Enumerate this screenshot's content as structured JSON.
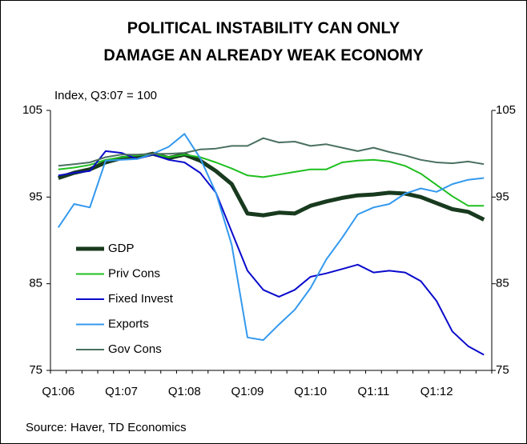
{
  "chart_data": {
    "type": "line",
    "title": [
      "POLITICAL INSTABILITY CAN ONLY",
      "DAMAGE AN ALREADY WEAK ECONOMY"
    ],
    "ylabel": "Index, Q3:07 = 100",
    "source": "Source: Haver, TD Economics",
    "categories": [
      "Q1:06",
      null,
      null,
      null,
      "Q1:07",
      null,
      null,
      null,
      "Q1:08",
      null,
      null,
      null,
      "Q1:09",
      null,
      null,
      null,
      "Q1:10",
      null,
      null,
      null,
      "Q1:11",
      null,
      null,
      null,
      "Q1:12",
      null,
      null,
      null
    ],
    "ylim": [
      75,
      105
    ],
    "yticks": [
      75,
      85,
      95,
      105
    ],
    "y2lim": [
      75,
      105
    ],
    "y2ticks": [
      75,
      85,
      95,
      105
    ],
    "legend": "left",
    "series": [
      {
        "name": "GDP",
        "color": "#183a1e",
        "width": 5,
        "values": [
          97.2,
          97.8,
          98.2,
          99.0,
          99.5,
          99.6,
          100.0,
          99.5,
          99.9,
          99.2,
          98.0,
          96.5,
          93.1,
          92.9,
          93.2,
          93.1,
          94.0,
          94.5,
          94.9,
          95.2,
          95.3,
          95.5,
          95.4,
          95.0,
          94.3,
          93.6,
          93.3,
          92.4
        ]
      },
      {
        "name": "Priv Cons",
        "color": "#1fbf1f",
        "width": 2,
        "values": [
          98.2,
          98.4,
          98.7,
          99.3,
          99.6,
          99.8,
          100.0,
          99.6,
          99.9,
          99.6,
          99.0,
          98.3,
          97.5,
          97.3,
          97.6,
          97.9,
          98.2,
          98.2,
          99.0,
          99.2,
          99.3,
          99.1,
          98.6,
          97.7,
          96.4,
          95.1,
          94.0,
          94.0
        ]
      },
      {
        "name": "Fixed Invest",
        "color": "#0a0acc",
        "width": 2,
        "values": [
          97.5,
          97.8,
          98.0,
          100.3,
          100.1,
          99.4,
          99.9,
          99.3,
          99.0,
          97.8,
          95.5,
          91.0,
          86.5,
          84.3,
          83.5,
          84.3,
          85.8,
          86.2,
          86.7,
          87.2,
          86.3,
          86.5,
          86.3,
          85.3,
          83.0,
          79.5,
          77.8,
          76.8
        ]
      },
      {
        "name": "Exports",
        "color": "#3399ee",
        "width": 2,
        "values": [
          91.5,
          94.2,
          93.8,
          99.2,
          99.3,
          99.4,
          100.0,
          100.8,
          102.3,
          99.5,
          95.5,
          89.5,
          78.8,
          78.5,
          80.3,
          82.0,
          84.5,
          87.8,
          90.3,
          93.0,
          93.8,
          94.2,
          95.4,
          96.0,
          95.6,
          96.5,
          97.0,
          97.2
        ]
      },
      {
        "name": "Gov Cons",
        "color": "#4a7060",
        "width": 2,
        "values": [
          98.6,
          98.8,
          99.0,
          99.6,
          99.9,
          99.9,
          100.0,
          100.0,
          100.1,
          100.5,
          100.6,
          100.9,
          100.9,
          101.8,
          101.3,
          101.4,
          100.9,
          101.1,
          100.7,
          100.3,
          100.7,
          100.2,
          99.8,
          99.3,
          99.0,
          98.9,
          99.1,
          98.8
        ]
      }
    ]
  }
}
